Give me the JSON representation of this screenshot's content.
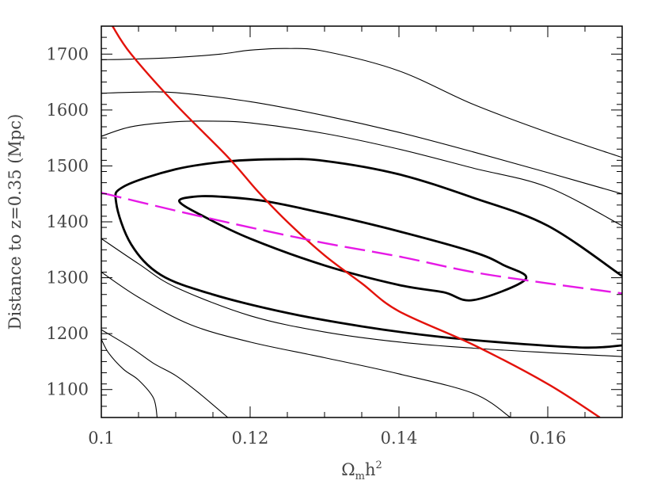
{
  "chart_data": {
    "type": "line",
    "title": "",
    "xlabel_main": "Ω",
    "xlabel_sub": "m",
    "xlabel_rest": "h",
    "xlabel_sup": "2",
    "ylabel": "Distance to z=0.35 (Mpc)",
    "xlim": [
      0.1,
      0.17
    ],
    "ylim": [
      1050,
      1750
    ],
    "x_ticks": [
      {
        "value": 0.1,
        "label": "0.1"
      },
      {
        "value": 0.12,
        "label": "0.12"
      },
      {
        "value": 0.14,
        "label": "0.14"
      },
      {
        "value": 0.16,
        "label": "0.16"
      }
    ],
    "y_ticks": [
      {
        "value": 1100,
        "label": "1100"
      },
      {
        "value": 1200,
        "label": "1200"
      },
      {
        "value": 1300,
        "label": "1300"
      },
      {
        "value": 1400,
        "label": "1400"
      },
      {
        "value": 1500,
        "label": "1500"
      },
      {
        "value": 1600,
        "label": "1600"
      },
      {
        "value": 1700,
        "label": "1700"
      }
    ],
    "x_minor_step": 0.005,
    "y_minor_step": 20,
    "grid": false,
    "series": [
      {
        "color": "#000000",
        "style": "thin",
        "closed": false,
        "points": [
          [
            0.1,
            1690
          ],
          [
            0.104,
            1691
          ],
          [
            0.11,
            1694
          ],
          [
            0.116,
            1700
          ],
          [
            0.12,
            1707
          ],
          [
            0.125,
            1710
          ],
          [
            0.13,
            1705
          ],
          [
            0.14,
            1670
          ],
          [
            0.15,
            1610
          ],
          [
            0.16,
            1560
          ],
          [
            0.17,
            1515
          ]
        ]
      },
      {
        "color": "#000000",
        "style": "thin",
        "closed": false,
        "points": [
          [
            0.1,
            1630
          ],
          [
            0.105,
            1632
          ],
          [
            0.11,
            1631
          ],
          [
            0.12,
            1615
          ],
          [
            0.13,
            1590
          ],
          [
            0.14,
            1560
          ],
          [
            0.15,
            1525
          ],
          [
            0.16,
            1488
          ],
          [
            0.17,
            1450
          ]
        ]
      },
      {
        "color": "#000000",
        "style": "thin",
        "closed": false,
        "points": [
          [
            0.1,
            1553
          ],
          [
            0.104,
            1570
          ],
          [
            0.11,
            1579
          ],
          [
            0.115,
            1580
          ],
          [
            0.12,
            1577
          ],
          [
            0.13,
            1558
          ],
          [
            0.14,
            1530
          ],
          [
            0.15,
            1496
          ],
          [
            0.16,
            1462
          ],
          [
            0.17,
            1393
          ]
        ]
      },
      {
        "color": "#000000",
        "style": "thick",
        "closed": true,
        "points": [
          [
            0.1105,
            1436
          ],
          [
            0.114,
            1408
          ],
          [
            0.12,
            1370
          ],
          [
            0.13,
            1322
          ],
          [
            0.14,
            1287
          ],
          [
            0.146,
            1274
          ],
          [
            0.15,
            1260
          ],
          [
            0.157,
            1297
          ],
          [
            0.154,
            1323
          ],
          [
            0.15,
            1346
          ],
          [
            0.14,
            1383
          ],
          [
            0.13,
            1415
          ],
          [
            0.122,
            1437
          ],
          [
            0.116,
            1445
          ],
          [
            0.1125,
            1445
          ]
        ]
      },
      {
        "color": "#000000",
        "style": "thick",
        "closed": false,
        "points": [
          [
            0.17,
            1179
          ],
          [
            0.165,
            1175
          ],
          [
            0.155,
            1183
          ],
          [
            0.145,
            1195
          ],
          [
            0.135,
            1213
          ],
          [
            0.125,
            1237
          ],
          [
            0.115,
            1270
          ],
          [
            0.108,
            1305
          ],
          [
            0.104,
            1360
          ],
          [
            0.102,
            1434
          ],
          [
            0.103,
            1463
          ],
          [
            0.11,
            1494
          ],
          [
            0.117,
            1508
          ],
          [
            0.124,
            1512
          ],
          [
            0.13,
            1509
          ],
          [
            0.14,
            1485
          ],
          [
            0.15,
            1443
          ],
          [
            0.16,
            1393
          ],
          [
            0.17,
            1303
          ]
        ]
      },
      {
        "color": "#000000",
        "style": "thin",
        "closed": false,
        "points": [
          [
            0.1,
            1370
          ],
          [
            0.105,
            1325
          ],
          [
            0.11,
            1283
          ],
          [
            0.12,
            1232
          ],
          [
            0.13,
            1203
          ],
          [
            0.14,
            1185
          ],
          [
            0.15,
            1174
          ],
          [
            0.16,
            1166
          ],
          [
            0.17,
            1159
          ]
        ]
      },
      {
        "color": "#000000",
        "style": "thin",
        "closed": false,
        "points": [
          [
            0.1,
            1310
          ],
          [
            0.105,
            1265
          ],
          [
            0.112,
            1216
          ],
          [
            0.12,
            1185
          ],
          [
            0.13,
            1157
          ],
          [
            0.14,
            1128
          ],
          [
            0.15,
            1093
          ],
          [
            0.155,
            1050
          ]
        ]
      },
      {
        "color": "#000000",
        "style": "thin",
        "closed": false,
        "points": [
          [
            0.1,
            1207
          ],
          [
            0.104,
            1175
          ],
          [
            0.107,
            1147
          ],
          [
            0.11,
            1125
          ],
          [
            0.113,
            1095
          ],
          [
            0.117,
            1050
          ]
        ]
      },
      {
        "color": "#000000",
        "style": "thin",
        "closed": false,
        "points": [
          [
            0.1,
            1190
          ],
          [
            0.101,
            1165
          ],
          [
            0.103,
            1136
          ],
          [
            0.105,
            1117
          ],
          [
            0.107,
            1085
          ],
          [
            0.1075,
            1050
          ]
        ]
      },
      {
        "color": "#e3120b",
        "style": "solid-red",
        "closed": false,
        "points": [
          [
            0.1015,
            1750
          ],
          [
            0.104,
            1700
          ],
          [
            0.11,
            1610
          ],
          [
            0.117,
            1516
          ],
          [
            0.121,
            1455
          ],
          [
            0.125,
            1400
          ],
          [
            0.13,
            1340
          ],
          [
            0.135,
            1290
          ],
          [
            0.14,
            1240
          ],
          [
            0.15,
            1180
          ],
          [
            0.16,
            1110
          ],
          [
            0.167,
            1050
          ]
        ]
      },
      {
        "color": "#e619e6",
        "style": "dashed",
        "closed": false,
        "points": [
          [
            0.1,
            1452
          ],
          [
            0.11,
            1420
          ],
          [
            0.12,
            1390
          ],
          [
            0.13,
            1362
          ],
          [
            0.14,
            1338
          ],
          [
            0.15,
            1310
          ],
          [
            0.16,
            1290
          ],
          [
            0.17,
            1272
          ]
        ]
      }
    ]
  }
}
